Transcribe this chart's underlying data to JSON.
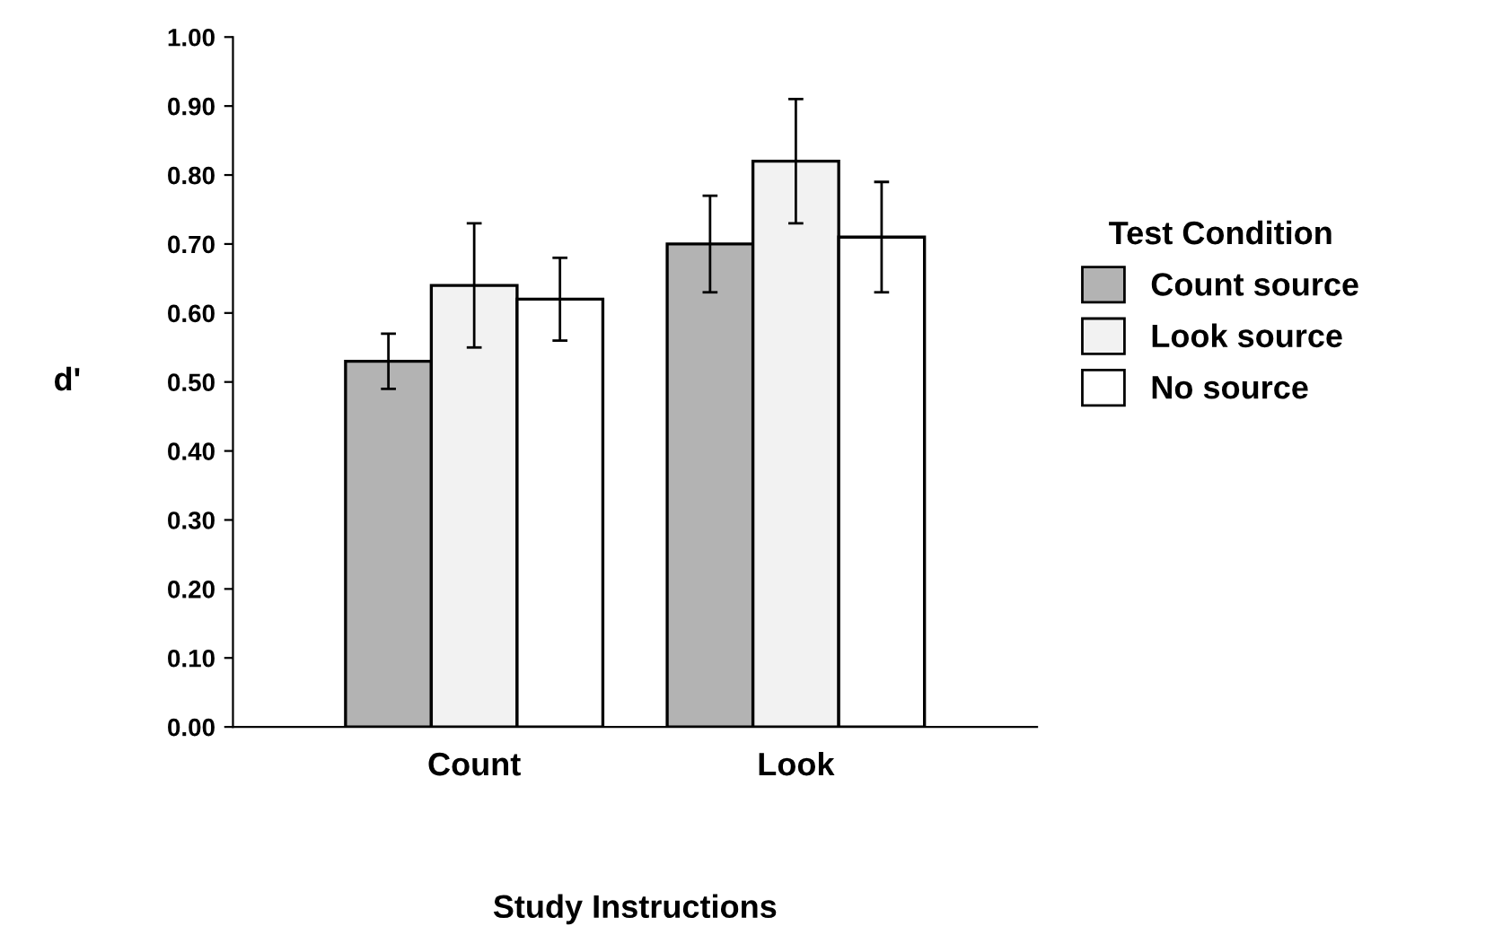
{
  "chart_data": {
    "type": "bar",
    "xlabel": "Study Instructions",
    "ylabel": "d'",
    "legend_title": "Test Condition",
    "categories": [
      "Count",
      "Look"
    ],
    "series": [
      {
        "name": "Count source",
        "color": "#b3b3b3",
        "values": [
          0.53,
          0.7
        ],
        "errors": [
          0.04,
          0.07
        ]
      },
      {
        "name": "Look source",
        "color": "#f2f2f2",
        "values": [
          0.64,
          0.82
        ],
        "errors": [
          0.09,
          0.09
        ]
      },
      {
        "name": "No source",
        "color": "#ffffff",
        "values": [
          0.62,
          0.71
        ],
        "errors": [
          0.06,
          0.08
        ]
      }
    ],
    "ylim": [
      0,
      1
    ],
    "yticks": [
      {
        "value": 0,
        "label": "0.00"
      },
      {
        "value": 0.1,
        "label": "0.10"
      },
      {
        "value": 0.2,
        "label": "0.20"
      },
      {
        "value": 0.3,
        "label": "0.30"
      },
      {
        "value": 0.4,
        "label": "0.40"
      },
      {
        "value": 0.5,
        "label": "0.50"
      },
      {
        "value": 0.6,
        "label": "0.60"
      },
      {
        "value": 0.7,
        "label": "0.70"
      },
      {
        "value": 0.8,
        "label": "0.80"
      },
      {
        "value": 0.9,
        "label": "0.90"
      },
      {
        "value": 1,
        "label": "1.00"
      }
    ],
    "grid": false,
    "legend": "right"
  }
}
